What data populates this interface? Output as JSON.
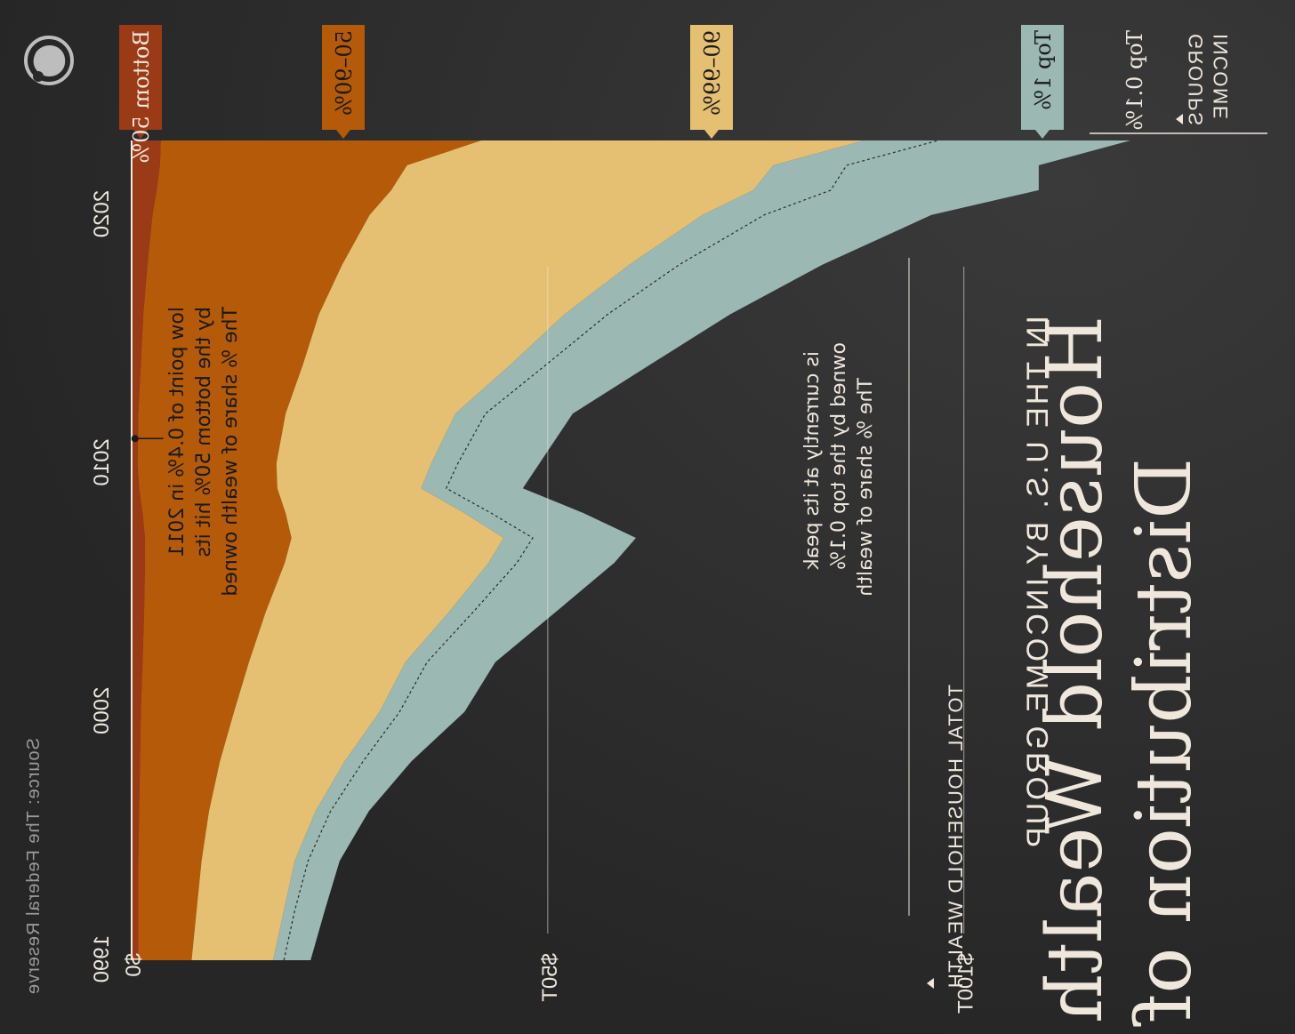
{
  "title": {
    "line1": "Distribution of",
    "line2": "Household Wealth",
    "subtitle": "IN THE U.S. BY INCOME GROUP"
  },
  "axis": {
    "value_label": "TOTAL HOUSEHOLD WEALTH",
    "group_label_line1": "INCOME",
    "group_label_line2": "GROUPS"
  },
  "annotations": {
    "top01": [
      "The % share of wealth",
      "owned by the top 0.1%",
      "is currently at its peak"
    ],
    "bottom50": [
      "The % share of wealth owned",
      "by the bottom 50% hit its",
      "low point of 0.4% in 2011"
    ]
  },
  "source": "Source: The Federal Reserve",
  "colors": {
    "bottom50": "#9a3a17",
    "p50_90": "#b45a09",
    "p90_99": "#e5c073",
    "top1": "#9bb8b3",
    "background": "#2a2a2a",
    "text": "#efe7dc",
    "logo": "#bdbdbd"
  },
  "icons": {
    "logo": "visual-capitalist-logo-icon"
  },
  "chart_data": {
    "type": "area",
    "stacked": true,
    "x": [
      1990,
      1992,
      1994,
      1996,
      1998,
      2000,
      2002,
      2004,
      2006,
      2007,
      2008,
      2009,
      2010,
      2012,
      2014,
      2016,
      2018,
      2020,
      2021,
      2022,
      2023
    ],
    "series": [
      {
        "name": "Bottom 50%",
        "values": [
          0.8,
          0.8,
          0.8,
          0.9,
          1.0,
          1.1,
          1.3,
          1.5,
          1.6,
          1.6,
          1.3,
          0.9,
          0.7,
          0.8,
          1.1,
          1.4,
          1.9,
          2.5,
          3.0,
          3.4,
          3.5
        ]
      },
      {
        "name": "50–90%",
        "values": [
          6.4,
          7.0,
          7.6,
          8.4,
          9.6,
          11.2,
          12.8,
          14.6,
          16.8,
          17.6,
          17.2,
          16.6,
          16.7,
          17.7,
          19.5,
          21.1,
          23.4,
          26.1,
          28.2,
          29.7,
          38.5
        ]
      },
      {
        "name": "90–99%",
        "values": [
          9.8,
          10.5,
          11.2,
          12.8,
          15.0,
          17.5,
          18.8,
          22.0,
          24.5,
          25.5,
          21.5,
          17.3,
          18.6,
          20.4,
          25.0,
          29.5,
          34.5,
          40.0,
          43.5,
          44.0,
          46.0
        ]
      },
      {
        "name": "Top 1%",
        "values": [
          4.5,
          4.9,
          5.4,
          6.4,
          8.0,
          10.2,
          10.8,
          12.8,
          15.1,
          15.9,
          14.3,
          12.2,
          13.0,
          14.1,
          16.8,
          19.9,
          23.2,
          27.5,
          34.3,
          31.9,
          32.0
        ]
      }
    ],
    "top01_line": [
      1.3,
      1.3,
      1.6,
      1.8,
      2.2,
      2.4,
      2.6,
      2.9,
      3.4,
      3.5,
      3.2,
      3.0,
      3.2,
      3.6,
      4.3,
      5.2,
      6.0,
      7.4,
      9.3,
      8.8,
      8.9
    ],
    "series_labels": [
      "Bottom 50%",
      "50–90%",
      "90–99%",
      "Top 1%",
      "Top 0.1%"
    ],
    "value_unit": "T",
    "ylim": [
      0,
      140
    ],
    "value_ticks": [
      {
        "value": 0,
        "label": "$0"
      },
      {
        "value": 50,
        "label": "$50T"
      },
      {
        "value": 100,
        "label": "$100T"
      }
    ],
    "year_ticks": [
      1990,
      2000,
      2010,
      2020
    ],
    "annotation_points": [
      {
        "id": "bottom50",
        "year": 2011,
        "value": 0.4
      }
    ]
  }
}
